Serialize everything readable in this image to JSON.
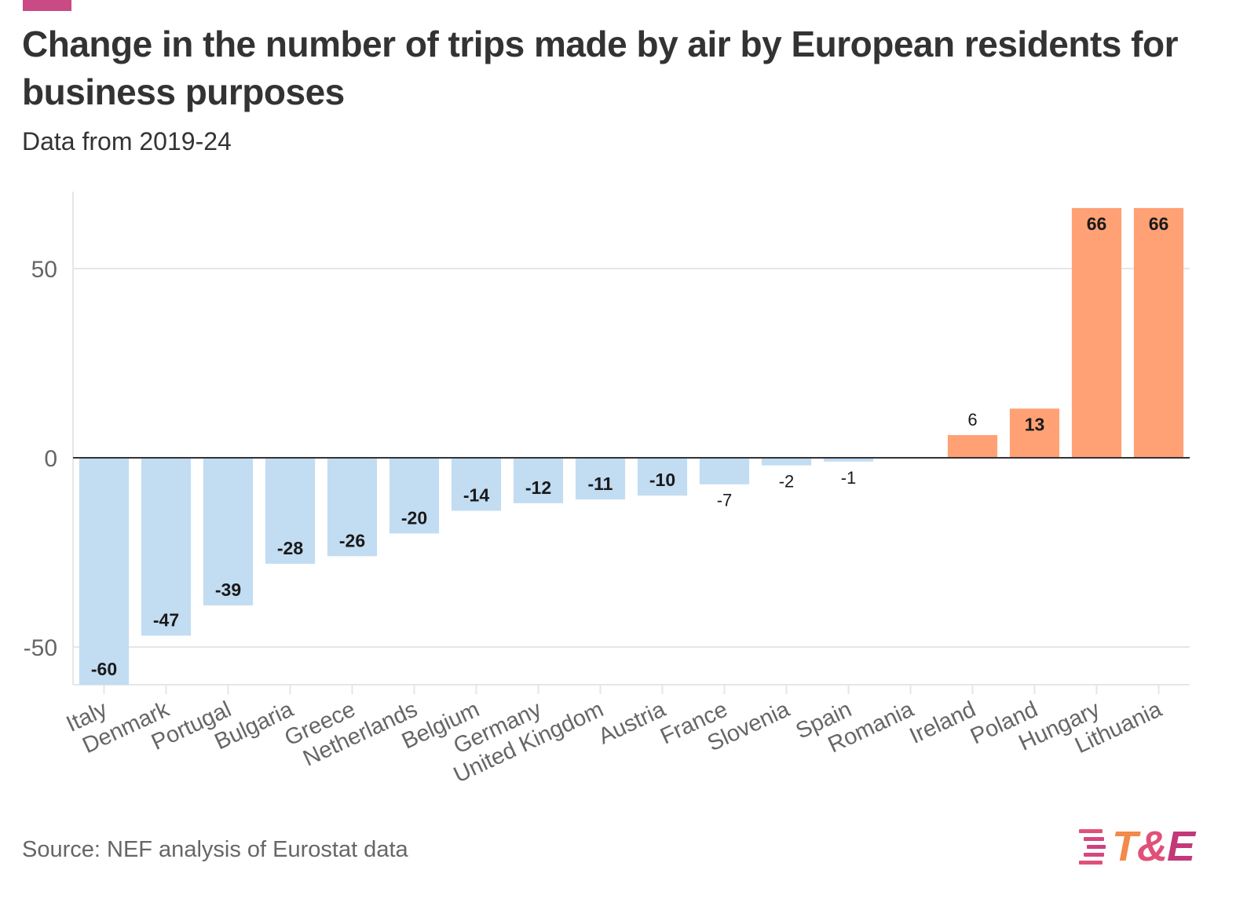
{
  "header": {
    "title": "Change in the number of trips made by air by European residents for business purposes",
    "subtitle": "Data from 2019-24"
  },
  "footer": {
    "source": "Source: NEF analysis of Eurostat data",
    "logo_t": "T",
    "logo_amp": "&",
    "logo_e": "E"
  },
  "colors": {
    "accent": "#c94a84",
    "negative_bar": "#c2dcf2",
    "positive_bar": "#ffa175",
    "axis_line": "#333333",
    "grid": "#e6e6e6",
    "tick_text": "#666666",
    "label_text": "#1a1a1a"
  },
  "chart_data": {
    "type": "bar",
    "title": "Change in the number of trips made by air by European residents for business purposes",
    "subtitle": "Data from 2019-24",
    "xlabel": "",
    "ylabel": "",
    "ylim": [
      -60,
      66
    ],
    "yticks": [
      -50,
      0,
      50
    ],
    "ytick_labels": [
      "-50",
      "0",
      "50"
    ],
    "grid": true,
    "legend": "none",
    "categories": [
      "Italy",
      "Denmark",
      "Portugal",
      "Bulgaria",
      "Greece",
      "Netherlands",
      "Belgium",
      "Germany",
      "United Kingdom",
      "Austria",
      "France",
      "Slovenia",
      "Spain",
      "Romania",
      "Ireland",
      "Poland",
      "Hungary",
      "Lithuania"
    ],
    "values": [
      -60,
      -47,
      -39,
      -28,
      -26,
      -20,
      -14,
      -12,
      -11,
      -10,
      -7,
      -2,
      -1,
      0,
      6,
      13,
      66,
      66
    ],
    "data_labels": [
      "-60",
      "-47",
      "-39",
      "-28",
      "-26",
      "-20",
      "-14",
      "-12",
      "-11",
      "-10",
      "-7",
      "-2",
      "-1",
      "",
      "6",
      "13",
      "66",
      "66"
    ]
  }
}
